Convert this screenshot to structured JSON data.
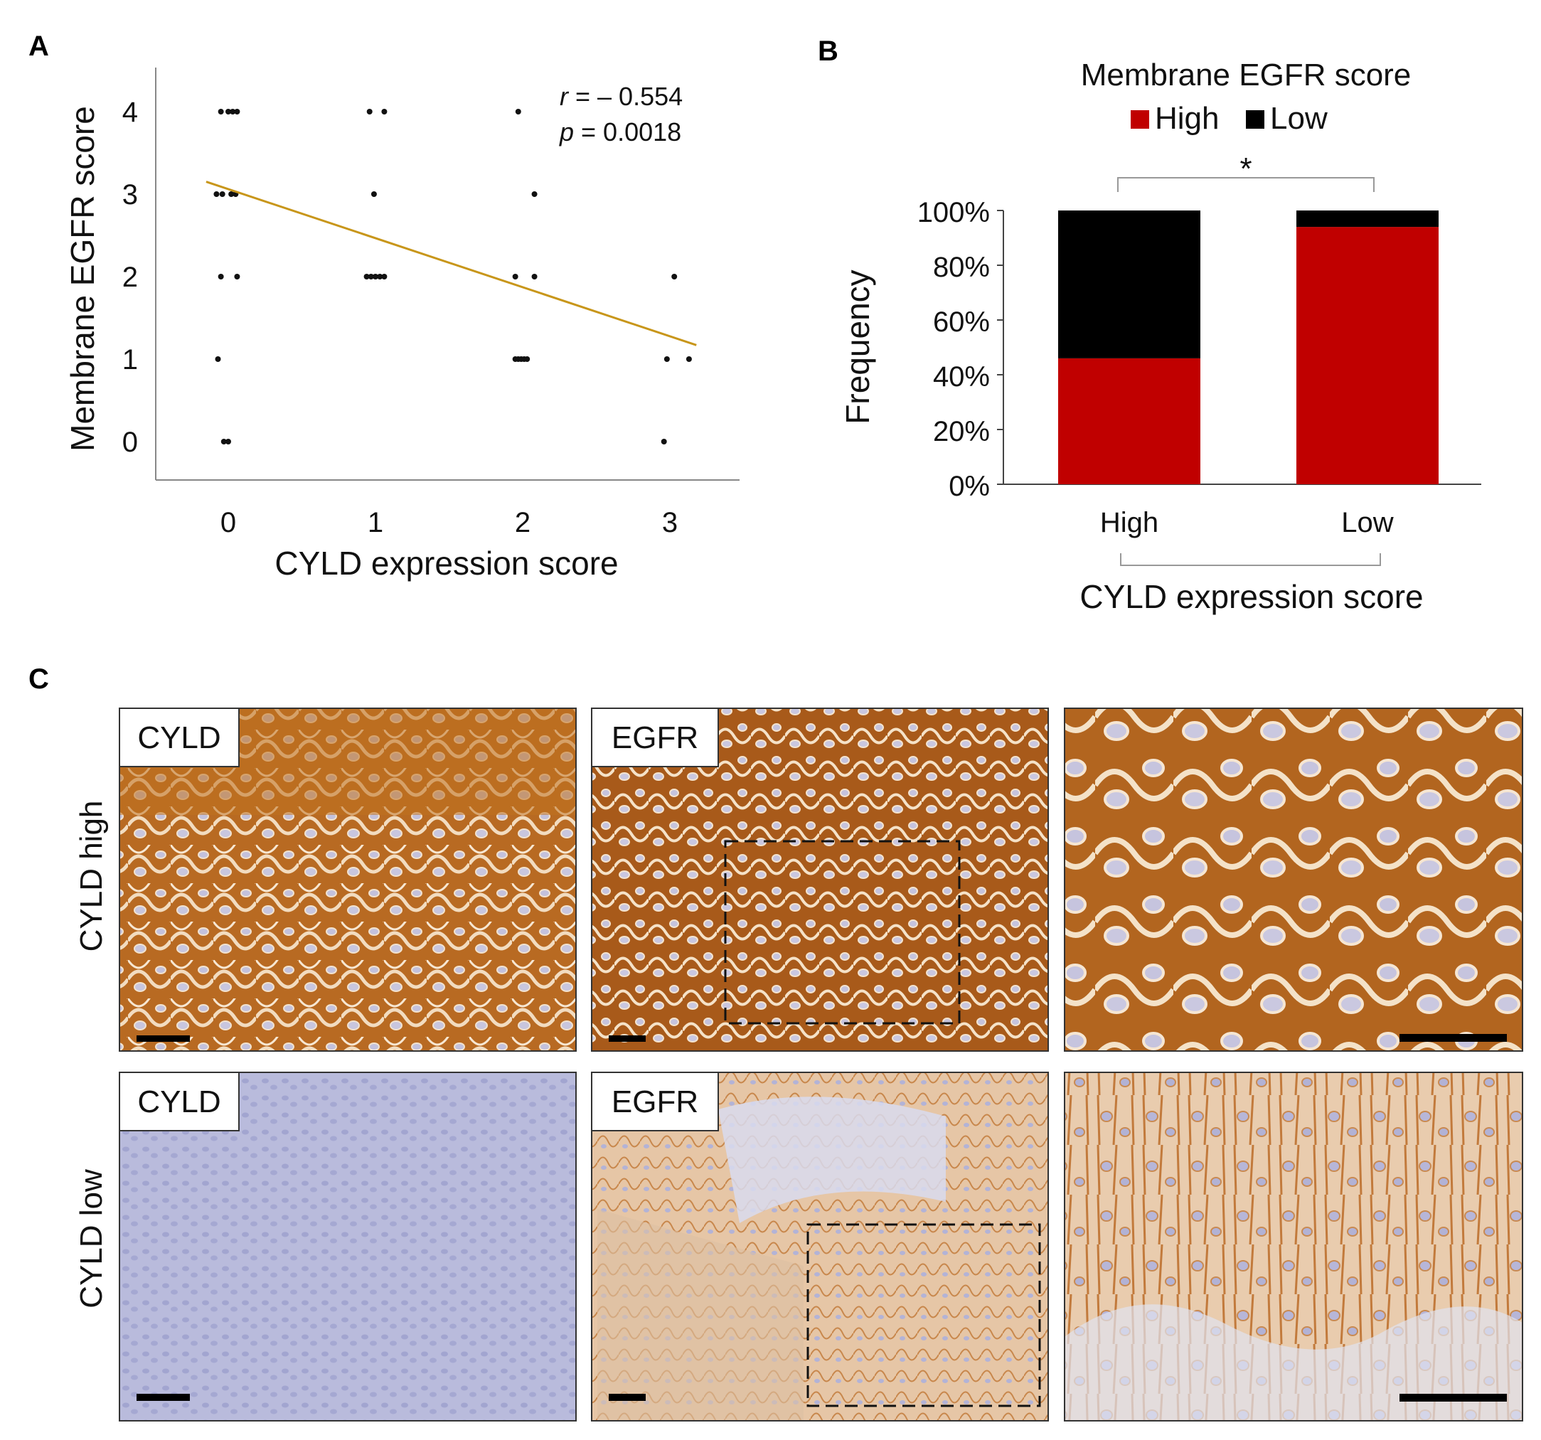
{
  "panels": {
    "a_letter": "A",
    "b_letter": "B",
    "c_letter": "C"
  },
  "chart_data": [
    {
      "type": "scatter",
      "xlabel": "CYLD expression score",
      "ylabel": "Membrane EGFR score",
      "xticks": [
        "0",
        "1",
        "2",
        "3"
      ],
      "yticks": [
        "0",
        "1",
        "2",
        "3",
        "4"
      ],
      "xlim": [
        -0.5,
        3.5
      ],
      "ylim": [
        -0.5,
        4.5
      ],
      "points": [
        {
          "x": -0.05,
          "y": 4
        },
        {
          "x": 0.0,
          "y": 4
        },
        {
          "x": 0.03,
          "y": 4
        },
        {
          "x": 0.06,
          "y": 4
        },
        {
          "x": -0.08,
          "y": 3
        },
        {
          "x": -0.04,
          "y": 3
        },
        {
          "x": 0.02,
          "y": 3
        },
        {
          "x": 0.05,
          "y": 3
        },
        {
          "x": -0.05,
          "y": 2
        },
        {
          "x": 0.06,
          "y": 2
        },
        {
          "x": -0.07,
          "y": 1
        },
        {
          "x": -0.03,
          "y": 0
        },
        {
          "x": 0.0,
          "y": 0
        },
        {
          "x": 0.96,
          "y": 4
        },
        {
          "x": 1.06,
          "y": 4
        },
        {
          "x": 0.99,
          "y": 3
        },
        {
          "x": 0.94,
          "y": 2
        },
        {
          "x": 0.97,
          "y": 2
        },
        {
          "x": 1.0,
          "y": 2
        },
        {
          "x": 1.03,
          "y": 2
        },
        {
          "x": 1.06,
          "y": 2
        },
        {
          "x": 1.97,
          "y": 4
        },
        {
          "x": 2.08,
          "y": 3
        },
        {
          "x": 1.95,
          "y": 2
        },
        {
          "x": 2.08,
          "y": 2
        },
        {
          "x": 1.95,
          "y": 1
        },
        {
          "x": 1.97,
          "y": 1
        },
        {
          "x": 1.99,
          "y": 1
        },
        {
          "x": 2.01,
          "y": 1
        },
        {
          "x": 2.03,
          "y": 1
        },
        {
          "x": 3.03,
          "y": 2
        },
        {
          "x": 2.98,
          "y": 1
        },
        {
          "x": 3.13,
          "y": 1
        },
        {
          "x": 2.96,
          "y": 0
        }
      ],
      "trendline": {
        "x": [
          -0.15,
          3.18
        ],
        "y": [
          3.15,
          1.17
        ],
        "color": "#c8961a"
      },
      "annotations": {
        "r_label": "r",
        "r_value": " = – 0.554",
        "p_label": "p",
        "p_value": " = 0.0018"
      }
    },
    {
      "type": "bar",
      "stacked": true,
      "title": "Membrane EGFR score",
      "xlabel": "CYLD expression score",
      "ylabel": "Frequency",
      "categories": [
        "High",
        "Low"
      ],
      "yticks": [
        "0%",
        "20%",
        "40%",
        "60%",
        "80%",
        "100%"
      ],
      "ylim": [
        0,
        100
      ],
      "series": [
        {
          "name": "High",
          "values": [
            46,
            94
          ],
          "color": "#c00000"
        },
        {
          "name": "Low",
          "values": [
            54,
            6
          ],
          "color": "#000000"
        }
      ],
      "significance": "*",
      "legend": "top-center"
    }
  ],
  "figure_c": {
    "row_labels": [
      "CYLD high",
      "CYLD low"
    ],
    "stain_labels": {
      "high_cyld": "CYLD",
      "high_egfr": "EGFR",
      "low_cyld": "CYLD",
      "low_egfr": "EGFR"
    },
    "colors": {
      "dab_strong": "#b4661f",
      "dab_light": "#e9b98a",
      "hematoxylin": "#aeb2d6",
      "stroma": "#dfe2f0"
    }
  }
}
